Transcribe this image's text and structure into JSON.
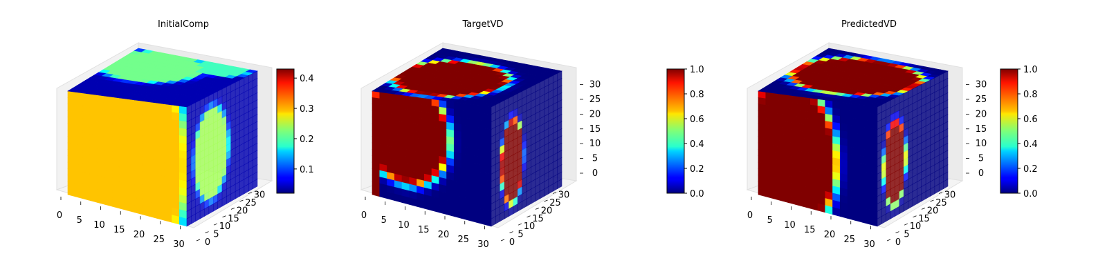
{
  "chart_data": [
    {
      "type": "heatmap",
      "title": "InitialComp",
      "axes": {
        "x_ticks": [
          0,
          5,
          10,
          15,
          20,
          25,
          30
        ],
        "y_ticks": [
          0,
          5,
          10,
          15,
          20,
          25,
          30
        ],
        "z_ticks": [],
        "range": [
          0,
          32
        ]
      },
      "colorbar": {
        "ticks": [
          0.1,
          0.2,
          0.3,
          0.4
        ],
        "min": 0.02,
        "max": 0.43,
        "colormap": "jet"
      },
      "field": {
        "base": 0.04,
        "front": [
          {
            "x": 0.4,
            "z": 0.5,
            "rx": 0.55,
            "rz": 0.95,
            "v": 0.3
          },
          {
            "x": 0.78,
            "z": 0.18,
            "rx": 0.1,
            "rz": 0.25,
            "v": 0.27
          },
          {
            "x": 0.05,
            "z": 0.7,
            "rx": 0.03,
            "rz": 0.18,
            "v": 0.06
          },
          {
            "x": 0.03,
            "z": 0.25,
            "rx": 0.03,
            "rz": 0.12,
            "v": 0.06
          }
        ],
        "top": [
          {
            "x": 0.3,
            "y": 0.3,
            "rx": 0.35,
            "ry": 0.3,
            "v": 0.22
          },
          {
            "x": 0.75,
            "y": 0.1,
            "rx": 0.2,
            "ry": 0.15,
            "v": 0.2
          }
        ],
        "side": [
          {
            "y": 0.35,
            "z": 0.5,
            "ry": 0.22,
            "rz": 0.35,
            "v": 0.24
          }
        ]
      }
    },
    {
      "type": "heatmap",
      "title": "TargetVD",
      "axes": {
        "x_ticks": [
          0,
          5,
          10,
          15,
          20,
          25,
          30
        ],
        "y_ticks": [
          0,
          5,
          10,
          15,
          20,
          25,
          30
        ],
        "z_ticks": [
          0,
          5,
          10,
          15,
          20,
          25,
          30
        ],
        "range": [
          0,
          32
        ]
      },
      "colorbar": {
        "ticks": [
          0.0,
          0.2,
          0.4,
          0.6,
          0.8,
          1.0
        ],
        "min": 0.0,
        "max": 1.0,
        "colormap": "jet"
      },
      "field": {
        "base": 0.0,
        "front": [
          {
            "x": 0.28,
            "z": 0.35,
            "rx": 0.33,
            "rz": 0.42,
            "v": 1.0
          },
          {
            "x": 0.02,
            "z": 0.85,
            "rx": 0.05,
            "rz": 0.22,
            "v": 1.0
          }
        ],
        "top": [
          {
            "x": 0.4,
            "y": 0.55,
            "rx": 0.38,
            "ry": 0.35,
            "v": 1.0
          }
        ],
        "side": [
          {
            "y": 0.3,
            "z": 0.55,
            "ry": 0.14,
            "rz": 0.32,
            "v": 1.0
          }
        ]
      }
    },
    {
      "type": "heatmap",
      "title": "PredictedVD",
      "axes": {
        "x_ticks": [
          0,
          5,
          10,
          15,
          20,
          25,
          30
        ],
        "y_ticks": [
          0,
          5,
          10,
          15,
          20,
          25,
          30
        ],
        "z_ticks": [
          0,
          5,
          10,
          15,
          20,
          25,
          30
        ],
        "range": [
          0,
          32
        ]
      },
      "colorbar": {
        "ticks": [
          0.0,
          0.2,
          0.4,
          0.6,
          0.8,
          1.0
        ],
        "min": 0.0,
        "max": 1.0,
        "colormap": "jet"
      },
      "field": {
        "base": 0.0,
        "front": [
          {
            "x": 0.27,
            "z": 0.55,
            "rx": 0.35,
            "rz": 0.6,
            "v": 1.0
          },
          {
            "x": 0.45,
            "z": 0.88,
            "rx": 0.08,
            "rz": 0.3,
            "v": 1.0
          },
          {
            "x": 0.02,
            "z": 0.85,
            "rx": 0.05,
            "rz": 0.22,
            "v": 1.0
          },
          {
            "x": 0.02,
            "z": 0.12,
            "rx": 0.04,
            "rz": 0.12,
            "v": 0.9
          }
        ],
        "top": [
          {
            "x": 0.5,
            "y": 0.45,
            "rx": 0.45,
            "ry": 0.35,
            "v": 1.0
          }
        ],
        "side": [
          {
            "y": 0.25,
            "z": 0.55,
            "ry": 0.14,
            "rz": 0.32,
            "v": 1.0
          }
        ]
      },
      "side_gap": true
    }
  ]
}
